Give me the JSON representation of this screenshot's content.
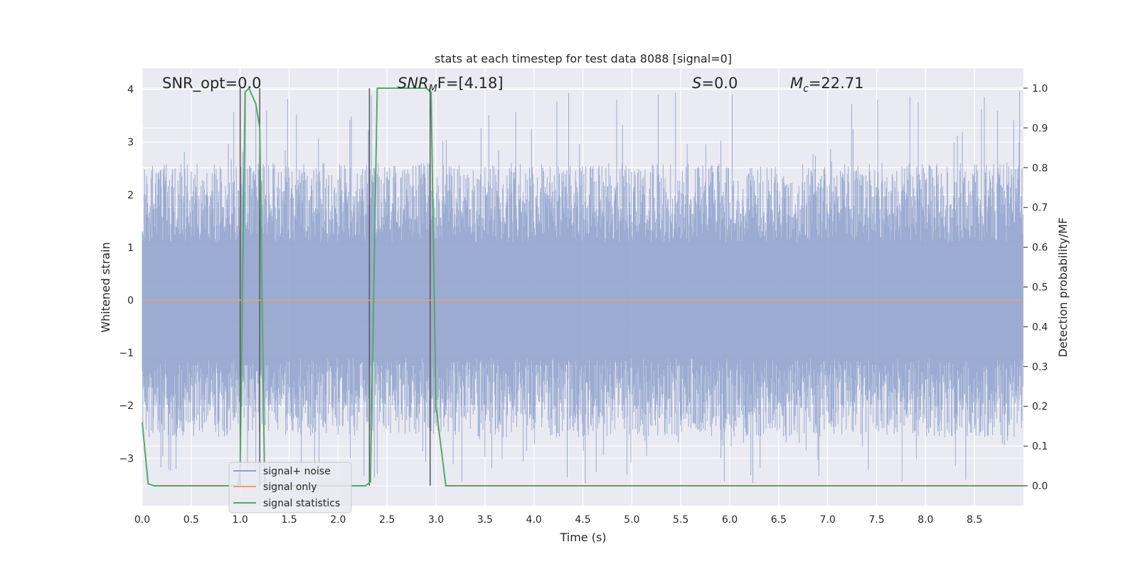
{
  "chart_data": {
    "type": "line",
    "title": "stats at each timestep for test data 8088 [signal=0]",
    "xlabel": "Time (s)",
    "ylabel_left": "Whitened strain",
    "ylabel_right": "Detection probability/MF",
    "xlim": [
      0.0,
      9.0
    ],
    "ylim_left": [
      -3.9,
      4.4
    ],
    "ylim_right": [
      -0.05,
      1.05
    ],
    "grid": true,
    "legend_position": "lower-left",
    "x_ticks": [
      "0.0",
      "0.5",
      "1.0",
      "1.5",
      "2.0",
      "2.5",
      "3.0",
      "3.5",
      "4.0",
      "4.5",
      "5.0",
      "5.5",
      "6.0",
      "6.5",
      "7.0",
      "7.5",
      "8.0",
      "8.5"
    ],
    "y_left_ticks": [
      "4",
      "3",
      "2",
      "1",
      "0",
      "−1",
      "−2",
      "−3"
    ],
    "y_right_ticks": [
      "1.0",
      "0.9",
      "0.8",
      "0.7",
      "0.6",
      "0.5",
      "0.4",
      "0.3",
      "0.2",
      "0.1",
      "0.0"
    ],
    "annotations": {
      "snr_opt": "SNR_opt=0.0",
      "snr_mf_main": "SNR",
      "snr_mf_sub": "M",
      "snr_mf_rest": "F=[4.18]",
      "s_italic": "S",
      "s_rest": "=0.0",
      "mc_main": "M",
      "mc_sub": "c",
      "mc_rest": "=22.71"
    },
    "colors": {
      "signal_noise": "#8da0cb",
      "signal_only": "#e8a07e",
      "signal_statistics": "#55a868",
      "vertical_lines": "#555555",
      "plot_bg": "#eaeaf2",
      "grid": "#ffffff"
    },
    "series": [
      {
        "name": "signal+ noise",
        "axis": "left",
        "description_envelope": {
          "typical_min": -2.6,
          "typical_max": 2.6,
          "peak_max": 4.0,
          "peak_min": -3.5
        }
      },
      {
        "name": "signal only",
        "axis": "left",
        "x": [
          0.0,
          9.0
        ],
        "y": [
          0.0,
          0.0
        ]
      },
      {
        "name": "signal statistics",
        "axis": "right",
        "x": [
          0.0,
          0.06,
          0.12,
          0.5,
          0.98,
          1.0,
          1.05,
          1.09,
          1.16,
          1.2,
          1.25,
          1.3,
          2.0,
          2.28,
          2.33,
          2.4,
          2.5,
          2.9,
          2.95,
          3.0,
          3.1,
          3.2,
          8.1,
          8.2,
          9.0
        ],
        "y": [
          0.16,
          0.005,
          0.0,
          0.0,
          0.0,
          0.05,
          0.99,
          1.0,
          0.96,
          0.9,
          0.0,
          0.0,
          0.0,
          0.0,
          0.01,
          1.0,
          1.0,
          1.0,
          0.99,
          0.2,
          0.0,
          0.0,
          0.0,
          0.0,
          0.0
        ]
      }
    ],
    "vertical_lines_x": [
      1.0,
      1.2,
      2.32,
      2.94
    ],
    "legend": [
      "signal+ noise",
      "signal only",
      "signal statistics"
    ]
  }
}
